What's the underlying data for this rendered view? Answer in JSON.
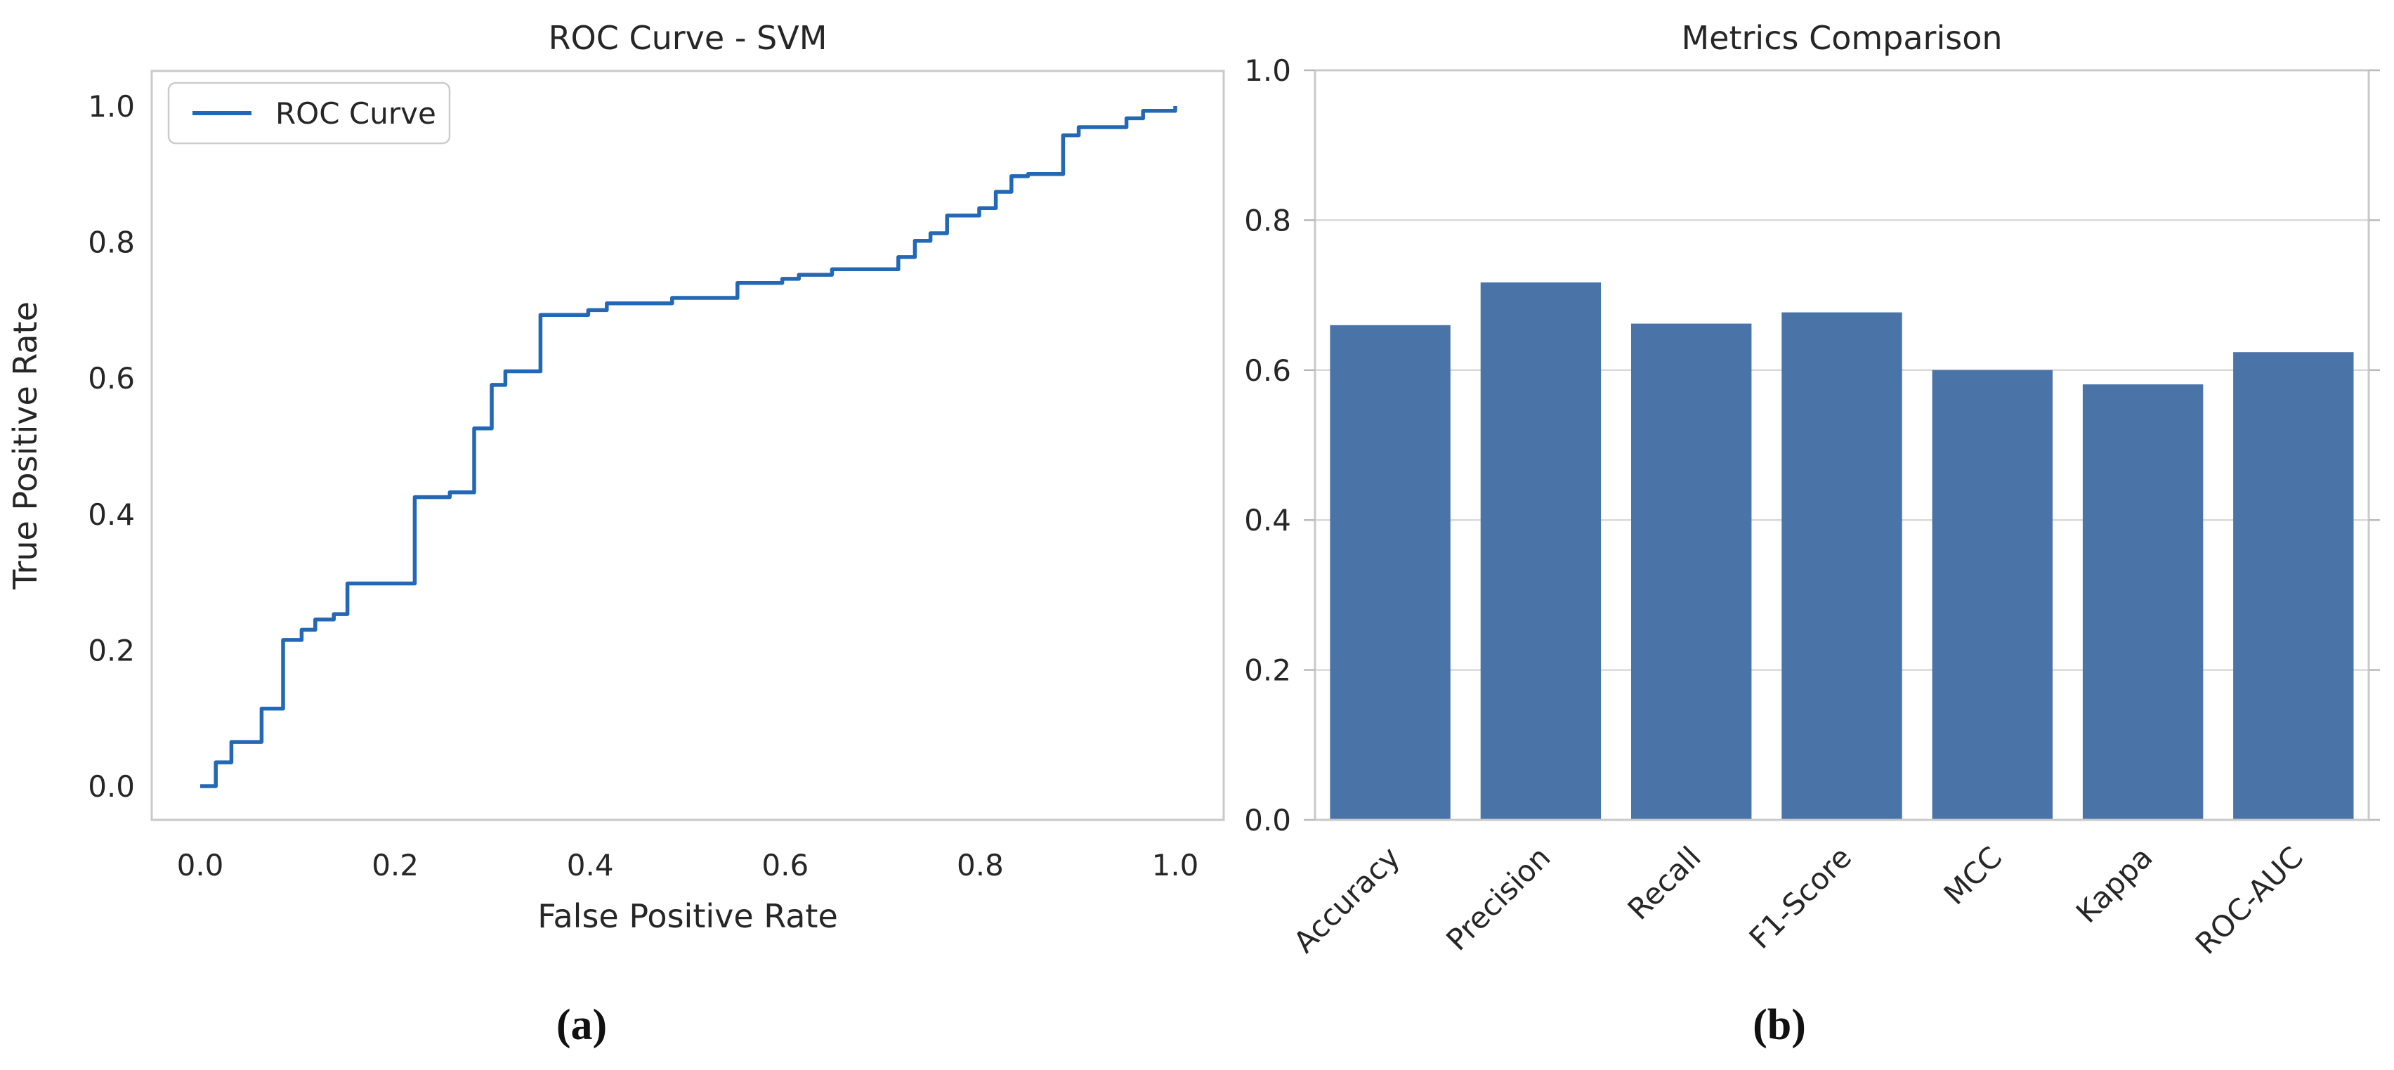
{
  "captions": {
    "a": "(a)",
    "b": "(b)"
  },
  "colors": {
    "roc_line": "#2368b4",
    "bar_fill": "#4a74a8",
    "spine": "#c9c9c9",
    "grid": "#d9d9d9",
    "tick_mark": "#b9b9b9",
    "text": "#262626",
    "background": "#ffffff"
  },
  "chart_data": [
    {
      "type": "line",
      "style": "step-post",
      "title": "ROC Curve - SVM",
      "xlabel": "False Positive Rate",
      "ylabel": "True Positive Rate",
      "legend": [
        {
          "label": "ROC Curve",
          "position": "upper-left"
        }
      ],
      "xlim": [
        -0.05,
        1.05
      ],
      "ylim": [
        -0.05,
        1.05
      ],
      "xticks": [
        "0.0",
        "0.2",
        "0.4",
        "0.6",
        "0.8",
        "1.0"
      ],
      "yticks": [
        "0.0",
        "0.2",
        "0.4",
        "0.6",
        "0.8",
        "1.0"
      ],
      "grid": false,
      "series": [
        {
          "name": "ROC Curve",
          "fpr": [
            0.0,
            0.016,
            0.032,
            0.063,
            0.085,
            0.104,
            0.118,
            0.137,
            0.151,
            0.22,
            0.256,
            0.281,
            0.299,
            0.313,
            0.349,
            0.398,
            0.417,
            0.484,
            0.551,
            0.597,
            0.614,
            0.648,
            0.716,
            0.733,
            0.749,
            0.766,
            0.799,
            0.816,
            0.832,
            0.849,
            0.885,
            0.901,
            0.95,
            0.967,
            1.0
          ],
          "tpr": [
            0.0,
            0.035,
            0.065,
            0.114,
            0.215,
            0.23,
            0.245,
            0.253,
            0.298,
            0.425,
            0.432,
            0.526,
            0.59,
            0.61,
            0.693,
            0.7,
            0.71,
            0.718,
            0.74,
            0.746,
            0.752,
            0.76,
            0.778,
            0.802,
            0.813,
            0.839,
            0.85,
            0.874,
            0.897,
            0.9,
            0.957,
            0.969,
            0.982,
            0.993,
            1.0
          ]
        }
      ]
    },
    {
      "type": "bar",
      "title": "Metrics Comparison",
      "xlabel": "",
      "ylabel": "",
      "categories": [
        "Accuracy",
        "Precision",
        "Recall",
        "F1-Score",
        "MCC",
        "Kappa",
        "ROC-AUC"
      ],
      "values": [
        0.66,
        0.717,
        0.662,
        0.677,
        0.6,
        0.581,
        0.624
      ],
      "ylim": [
        0.0,
        1.0
      ],
      "yticks": [
        "0.0",
        "0.2",
        "0.4",
        "0.6",
        "0.8",
        "1.0"
      ],
      "grid": true,
      "legend_position": "none",
      "xtick_rotation": 45
    }
  ]
}
